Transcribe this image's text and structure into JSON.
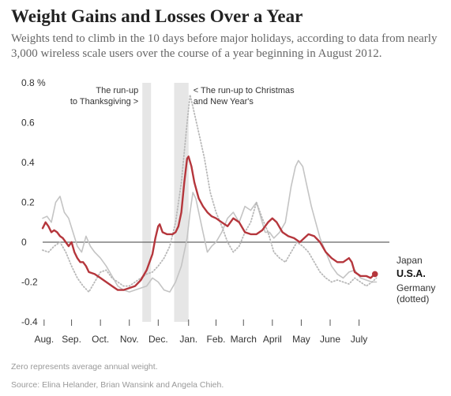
{
  "header": {
    "title": "Weight Gains and Losses Over a Year",
    "subtitle": "Weights tend to climb in the 10 days before major holidays, according to data from nearly 3,000 wireless scale users over the course of a year beginning in August 2012."
  },
  "footer": {
    "note": "Zero represents average annual weight.",
    "source": "Source: Elina Helander, Brian Wansink and Angela Chieh."
  },
  "colors": {
    "usa": "#b5363c",
    "japan": "#c4c4c4",
    "germany": "#b8b8b8",
    "band": "#e6e6e6",
    "zero_line": "#666666",
    "axis_text": "#333333"
  },
  "chart_data": {
    "type": "line",
    "ylabel": "",
    "xlabel": "",
    "ylim": [
      -0.4,
      0.8
    ],
    "x_range": [
      0,
      12
    ],
    "y_ticks": [
      {
        "value": 0.8,
        "label": "0.8 %"
      },
      {
        "value": 0.6,
        "label": "0.6"
      },
      {
        "value": 0.4,
        "label": "0.4"
      },
      {
        "value": 0.2,
        "label": "0.2"
      },
      {
        "value": 0,
        "label": "0"
      },
      {
        "value": -0.2,
        "label": "-0.2"
      },
      {
        "value": -0.4,
        "label": "-0.4"
      }
    ],
    "month_labels": [
      "Aug.",
      "Sep.",
      "Oct.",
      "Nov.",
      "Dec.",
      "Jan.",
      "Feb.",
      "March",
      "April",
      "May",
      "June",
      "July"
    ],
    "month_label_positions": [
      0.05,
      1.0,
      2.0,
      3.0,
      4.0,
      5.05,
      6.0,
      6.95,
      7.95,
      8.95,
      9.95,
      10.95
    ],
    "grid": false,
    "zero_line": true,
    "bands": [
      {
        "start": 3.45,
        "end": 3.75,
        "label_lines": [
          "The run-up",
          "to Thanksgiving >"
        ]
      },
      {
        "start": 4.55,
        "end": 5.05,
        "label_lines": [
          "< The run-up to Christmas",
          "and  New Year's"
        ]
      }
    ],
    "series": [
      {
        "name": "Japan",
        "style": "solid",
        "points": [
          [
            0,
            0.12
          ],
          [
            0.15,
            0.13
          ],
          [
            0.3,
            0.1
          ],
          [
            0.45,
            0.2
          ],
          [
            0.6,
            0.23
          ],
          [
            0.75,
            0.15
          ],
          [
            0.9,
            0.12
          ],
          [
            1.05,
            0.05
          ],
          [
            1.2,
            -0.02
          ],
          [
            1.35,
            -0.05
          ],
          [
            1.5,
            0.03
          ],
          [
            1.65,
            -0.02
          ],
          [
            1.8,
            -0.05
          ],
          [
            2.0,
            -0.08
          ],
          [
            2.2,
            -0.12
          ],
          [
            2.4,
            -0.17
          ],
          [
            2.6,
            -0.22
          ],
          [
            2.8,
            -0.24
          ],
          [
            3.0,
            -0.25
          ],
          [
            3.2,
            -0.24
          ],
          [
            3.4,
            -0.23
          ],
          [
            3.6,
            -0.22
          ],
          [
            3.8,
            -0.18
          ],
          [
            4.0,
            -0.2
          ],
          [
            4.2,
            -0.24
          ],
          [
            4.4,
            -0.25
          ],
          [
            4.6,
            -0.2
          ],
          [
            4.8,
            -0.12
          ],
          [
            5.0,
            0.02
          ],
          [
            5.1,
            0.15
          ],
          [
            5.2,
            0.25
          ],
          [
            5.3,
            0.22
          ],
          [
            5.4,
            0.15
          ],
          [
            5.55,
            0.05
          ],
          [
            5.7,
            -0.05
          ],
          [
            5.85,
            -0.02
          ],
          [
            6.0,
            0.0
          ],
          [
            6.2,
            0.05
          ],
          [
            6.4,
            0.12
          ],
          [
            6.6,
            0.15
          ],
          [
            6.8,
            0.1
          ],
          [
            7.0,
            0.18
          ],
          [
            7.2,
            0.16
          ],
          [
            7.4,
            0.2
          ],
          [
            7.5,
            0.15
          ],
          [
            7.6,
            0.1
          ],
          [
            7.7,
            0.05
          ],
          [
            7.85,
            0.05
          ],
          [
            8.0,
            0.02
          ],
          [
            8.2,
            0.05
          ],
          [
            8.4,
            0.1
          ],
          [
            8.6,
            0.28
          ],
          [
            8.75,
            0.38
          ],
          [
            8.85,
            0.41
          ],
          [
            9.0,
            0.38
          ],
          [
            9.15,
            0.28
          ],
          [
            9.3,
            0.18
          ],
          [
            9.45,
            0.1
          ],
          [
            9.6,
            0.02
          ],
          [
            9.8,
            -0.05
          ],
          [
            10.0,
            -0.12
          ],
          [
            10.2,
            -0.16
          ],
          [
            10.4,
            -0.18
          ],
          [
            10.6,
            -0.15
          ],
          [
            10.8,
            -0.14
          ],
          [
            11.0,
            -0.18
          ],
          [
            11.2,
            -0.19
          ],
          [
            11.4,
            -0.2
          ],
          [
            11.55,
            -0.2
          ]
        ]
      },
      {
        "name": "U.S.A.",
        "style": "solid",
        "points": [
          [
            0,
            0.07
          ],
          [
            0.1,
            0.1
          ],
          [
            0.2,
            0.08
          ],
          [
            0.3,
            0.05
          ],
          [
            0.4,
            0.06
          ],
          [
            0.5,
            0.05
          ],
          [
            0.6,
            0.03
          ],
          [
            0.7,
            0.02
          ],
          [
            0.8,
            0.0
          ],
          [
            0.9,
            -0.02
          ],
          [
            1.0,
            0.0
          ],
          [
            1.1,
            -0.05
          ],
          [
            1.2,
            -0.08
          ],
          [
            1.3,
            -0.1
          ],
          [
            1.4,
            -0.1
          ],
          [
            1.5,
            -0.12
          ],
          [
            1.6,
            -0.15
          ],
          [
            1.8,
            -0.16
          ],
          [
            2.0,
            -0.18
          ],
          [
            2.2,
            -0.2
          ],
          [
            2.4,
            -0.22
          ],
          [
            2.6,
            -0.24
          ],
          [
            2.8,
            -0.24
          ],
          [
            3.0,
            -0.23
          ],
          [
            3.2,
            -0.22
          ],
          [
            3.4,
            -0.19
          ],
          [
            3.6,
            -0.14
          ],
          [
            3.8,
            -0.06
          ],
          [
            3.9,
            0.02
          ],
          [
            4.0,
            0.08
          ],
          [
            4.05,
            0.09
          ],
          [
            4.15,
            0.05
          ],
          [
            4.3,
            0.04
          ],
          [
            4.5,
            0.04
          ],
          [
            4.6,
            0.05
          ],
          [
            4.7,
            0.08
          ],
          [
            4.8,
            0.15
          ],
          [
            4.9,
            0.3
          ],
          [
            5.0,
            0.42
          ],
          [
            5.05,
            0.43
          ],
          [
            5.15,
            0.38
          ],
          [
            5.25,
            0.3
          ],
          [
            5.4,
            0.22
          ],
          [
            5.55,
            0.18
          ],
          [
            5.7,
            0.15
          ],
          [
            5.85,
            0.13
          ],
          [
            6.0,
            0.12
          ],
          [
            6.2,
            0.1
          ],
          [
            6.4,
            0.08
          ],
          [
            6.6,
            0.12
          ],
          [
            6.8,
            0.1
          ],
          [
            7.0,
            0.05
          ],
          [
            7.2,
            0.04
          ],
          [
            7.4,
            0.04
          ],
          [
            7.6,
            0.06
          ],
          [
            7.8,
            0.1
          ],
          [
            7.95,
            0.12
          ],
          [
            8.1,
            0.1
          ],
          [
            8.3,
            0.05
          ],
          [
            8.5,
            0.03
          ],
          [
            8.7,
            0.02
          ],
          [
            8.9,
            0.0
          ],
          [
            9.05,
            0.02
          ],
          [
            9.2,
            0.04
          ],
          [
            9.4,
            0.03
          ],
          [
            9.6,
            0.0
          ],
          [
            9.8,
            -0.05
          ],
          [
            10.0,
            -0.08
          ],
          [
            10.2,
            -0.1
          ],
          [
            10.4,
            -0.1
          ],
          [
            10.6,
            -0.08
          ],
          [
            10.7,
            -0.1
          ],
          [
            10.8,
            -0.15
          ],
          [
            11.0,
            -0.17
          ],
          [
            11.2,
            -0.17
          ],
          [
            11.35,
            -0.18
          ],
          [
            11.5,
            -0.16
          ]
        ]
      },
      {
        "name": "Germany (dotted)",
        "style": "dotted",
        "points": [
          [
            0,
            -0.04
          ],
          [
            0.2,
            -0.05
          ],
          [
            0.4,
            -0.02
          ],
          [
            0.6,
            0.0
          ],
          [
            0.8,
            -0.05
          ],
          [
            1.0,
            -0.12
          ],
          [
            1.2,
            -0.18
          ],
          [
            1.4,
            -0.22
          ],
          [
            1.6,
            -0.25
          ],
          [
            1.8,
            -0.2
          ],
          [
            2.0,
            -0.15
          ],
          [
            2.2,
            -0.14
          ],
          [
            2.4,
            -0.18
          ],
          [
            2.6,
            -0.2
          ],
          [
            2.8,
            -0.22
          ],
          [
            3.0,
            -0.22
          ],
          [
            3.2,
            -0.2
          ],
          [
            3.4,
            -0.18
          ],
          [
            3.6,
            -0.16
          ],
          [
            3.8,
            -0.15
          ],
          [
            4.0,
            -0.12
          ],
          [
            4.2,
            -0.08
          ],
          [
            4.4,
            -0.02
          ],
          [
            4.6,
            0.1
          ],
          [
            4.8,
            0.3
          ],
          [
            5.0,
            0.6
          ],
          [
            5.1,
            0.74
          ],
          [
            5.2,
            0.68
          ],
          [
            5.4,
            0.55
          ],
          [
            5.6,
            0.42
          ],
          [
            5.8,
            0.25
          ],
          [
            6.0,
            0.15
          ],
          [
            6.2,
            0.08
          ],
          [
            6.4,
            0.0
          ],
          [
            6.6,
            -0.05
          ],
          [
            6.8,
            -0.02
          ],
          [
            7.0,
            0.05
          ],
          [
            7.2,
            0.1
          ],
          [
            7.4,
            0.2
          ],
          [
            7.6,
            0.12
          ],
          [
            7.8,
            0.05
          ],
          [
            8.0,
            -0.05
          ],
          [
            8.2,
            -0.08
          ],
          [
            8.4,
            -0.1
          ],
          [
            8.6,
            -0.05
          ],
          [
            8.8,
            0.0
          ],
          [
            9.0,
            -0.02
          ],
          [
            9.2,
            -0.05
          ],
          [
            9.4,
            -0.1
          ],
          [
            9.6,
            -0.15
          ],
          [
            9.8,
            -0.18
          ],
          [
            10.0,
            -0.2
          ],
          [
            10.2,
            -0.19
          ],
          [
            10.4,
            -0.2
          ],
          [
            10.6,
            -0.21
          ],
          [
            10.8,
            -0.18
          ],
          [
            11.0,
            -0.2
          ],
          [
            11.2,
            -0.22
          ],
          [
            11.4,
            -0.2
          ],
          [
            11.55,
            -0.18
          ]
        ]
      }
    ],
    "series_labels": {
      "japan": "Japan",
      "usa": "U.S.A.",
      "germany_line1": "Germany",
      "germany_line2": "(dotted)"
    }
  }
}
